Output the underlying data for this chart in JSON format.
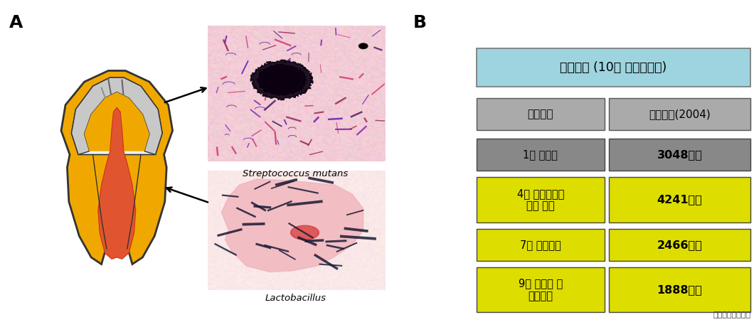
{
  "panel_a_label": "A",
  "panel_b_label": "B",
  "title_text": "국내현황 (10대 다빈도질환)",
  "title_bg": "#9dd4df",
  "header_left": "주요질환",
  "header_right": "종진료비(2004)",
  "rows": [
    {
      "left_text": "1위 고혁압",
      "right_text": "3048억원",
      "left_bg": "#888888",
      "right_bg": "#888888"
    },
    {
      "left_text": "4위 치수치근단\n주위 질환",
      "right_text": "4241억원",
      "left_bg": "#dddd00",
      "right_bg": "#dddd00"
    },
    {
      "left_text": "7위 충치질환",
      "right_text": "2466억원",
      "left_bg": "#dddd00",
      "right_bg": "#dddd00"
    },
    {
      "left_text": "9위 잏몸병 및\n치주질환",
      "right_text": "1888억원",
      "left_bg": "#dddd00",
      "right_bg": "#dddd00"
    }
  ],
  "footnote": "국민건강보험공단",
  "streptococcus_label": "Streptococcus mutans",
  "lactobacillus_label": "Lactobacillus",
  "tooth_outer_color": "#f0a800",
  "tooth_enamel_white": "#f5f5f5",
  "tooth_enamel_gray": "#c8c8c8",
  "tooth_pulp_color": "#e05530",
  "tooth_outline": "#333333"
}
